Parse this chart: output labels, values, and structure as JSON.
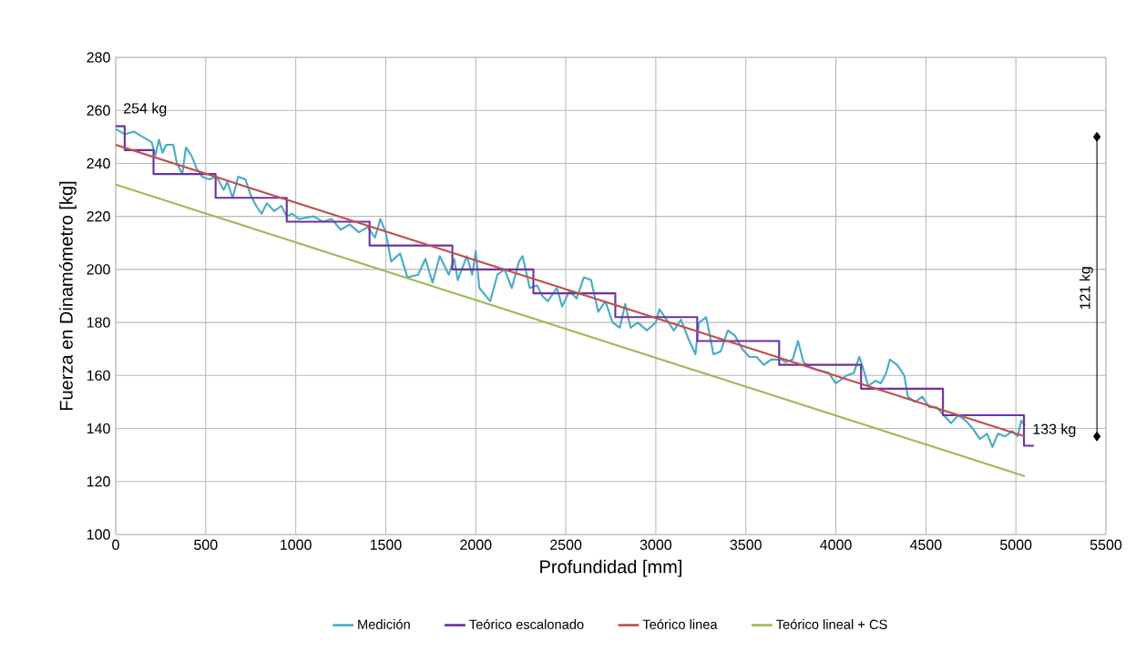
{
  "chart_data": {
    "type": "line",
    "xlabel": "Profundidad [mm]",
    "ylabel": "Fuerza en Dinamómetro [kg]",
    "xlim": [
      0,
      5500
    ],
    "xticks": [
      0,
      500,
      1000,
      1500,
      2000,
      2500,
      3000,
      3500,
      4000,
      4500,
      5000,
      5500
    ],
    "ylim": [
      100,
      280
    ],
    "yticks": [
      100,
      120,
      140,
      160,
      180,
      200,
      220,
      240,
      260,
      280
    ],
    "grid": true,
    "legend": "bottom",
    "marker": "none",
    "series": [
      {
        "name": "Medición",
        "color": "#4bacc6",
        "x": [
          0,
          50,
          100,
          150,
          200,
          220,
          240,
          260,
          280,
          320,
          340,
          370,
          390,
          420,
          450,
          480,
          520,
          560,
          600,
          620,
          650,
          680,
          720,
          750,
          780,
          810,
          840,
          880,
          920,
          950,
          980,
          1020,
          1100,
          1150,
          1200,
          1250,
          1300,
          1350,
          1400,
          1440,
          1470,
          1500,
          1530,
          1580,
          1620,
          1680,
          1720,
          1760,
          1800,
          1850,
          1880,
          1900,
          1950,
          1980,
          2000,
          2020,
          2080,
          2120,
          2160,
          2200,
          2240,
          2260,
          2300,
          2340,
          2370,
          2400,
          2450,
          2480,
          2520,
          2560,
          2600,
          2640,
          2680,
          2720,
          2760,
          2800,
          2830,
          2860,
          2900,
          2950,
          3000,
          3020,
          3060,
          3100,
          3140,
          3180,
          3220,
          3240,
          3280,
          3320,
          3360,
          3400,
          3440,
          3480,
          3520,
          3560,
          3600,
          3640,
          3700,
          3720,
          3760,
          3790,
          3820,
          3860,
          3900,
          3960,
          4000,
          4060,
          4100,
          4130,
          4150,
          4180,
          4220,
          4250,
          4280,
          4300,
          4340,
          4380,
          4400,
          4440,
          4480,
          4520,
          4560,
          4600,
          4640,
          4680,
          4720,
          4760,
          4800,
          4840,
          4870,
          4900,
          4940,
          4980,
          5010,
          5030,
          5050
        ],
        "values": [
          253,
          251,
          252,
          250,
          248,
          243,
          249,
          244,
          247,
          247,
          240,
          236,
          246,
          243,
          238,
          235,
          234,
          235,
          230,
          233,
          227,
          235,
          234,
          228,
          224,
          221,
          225,
          222,
          224,
          220,
          221,
          219,
          220,
          218,
          219,
          215,
          217,
          214,
          216,
          212,
          219,
          214,
          203,
          206,
          197,
          198,
          204,
          195,
          205,
          198,
          204,
          196,
          205,
          198,
          207,
          193,
          188,
          198,
          200,
          193,
          203,
          205,
          193,
          194,
          190,
          188,
          193,
          186,
          192,
          189,
          197,
          196,
          184,
          188,
          180,
          178,
          187,
          178,
          180,
          177,
          180,
          185,
          181,
          177,
          181,
          174,
          168,
          180,
          182,
          168,
          169,
          177,
          175,
          170,
          167,
          167,
          164,
          166,
          166,
          165,
          166,
          173,
          165,
          163,
          162,
          161,
          157,
          160,
          161,
          167,
          163,
          156,
          158,
          157,
          161,
          166,
          164,
          160,
          152,
          150,
          152,
          148,
          148,
          145,
          142,
          145,
          143,
          140,
          136,
          138,
          133,
          138,
          137,
          139,
          137,
          143,
          141
        ]
      },
      {
        "name": "Teórico escalonado",
        "type": "step",
        "color": "#7030a0",
        "x": [
          0,
          50,
          210,
          555,
          950,
          1410,
          1870,
          2320,
          2775,
          3230,
          3685,
          4140,
          4595,
          5045,
          5100
        ],
        "values": [
          254,
          245,
          236,
          227,
          218,
          209,
          200,
          191,
          182,
          173,
          164,
          155,
          145,
          133.5,
          133.5
        ]
      },
      {
        "name": "Teórico linea",
        "color": "#c0504d",
        "x": [
          0,
          5050
        ],
        "values": [
          247,
          137
        ]
      },
      {
        "name": "Teórico lineal + CS",
        "color": "#9bbb59",
        "x": [
          0,
          5050
        ],
        "values": [
          232,
          122
        ]
      },
      {
        "color": "#000000",
        "marker": "diamond",
        "x": [
          5450,
          5450
        ],
        "values": [
          250,
          137
        ]
      }
    ],
    "annotations": [
      {
        "text": "254 kg",
        "x": 0,
        "y": 254
      },
      {
        "text": "133 kg",
        "x": 5050,
        "y": 133
      },
      {
        "text": "121 kg",
        "x": 5450,
        "y": 193
      }
    ]
  }
}
